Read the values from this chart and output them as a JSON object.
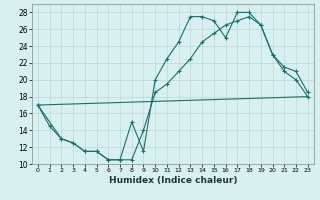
{
  "xlabel": "Humidex (Indice chaleur)",
  "bg_color": "#d8f0f0",
  "grid_color": "#b8d8d8",
  "line_color": "#1a6e6e",
  "xlim": [
    -0.5,
    23.5
  ],
  "ylim": [
    10,
    29
  ],
  "xticks": [
    0,
    1,
    2,
    3,
    4,
    5,
    6,
    7,
    8,
    9,
    10,
    11,
    12,
    13,
    14,
    15,
    16,
    17,
    18,
    19,
    20,
    21,
    22,
    23
  ],
  "yticks": [
    10,
    12,
    14,
    16,
    18,
    20,
    22,
    24,
    26,
    28
  ],
  "line1_x": [
    0,
    1,
    2,
    3,
    4,
    5,
    6,
    7,
    8,
    9,
    10,
    11,
    12,
    13,
    14,
    15,
    16,
    17,
    18,
    19,
    20,
    21,
    22,
    23
  ],
  "line1_y": [
    17,
    14.5,
    13,
    12.5,
    11.5,
    11.5,
    10.5,
    10.5,
    15,
    11.5,
    20.0,
    22.5,
    24.5,
    27.5,
    27.5,
    27.0,
    25.0,
    28.0,
    28.0,
    26.5,
    23.0,
    21.0,
    20.0,
    18.0
  ],
  "line2_x": [
    0,
    2,
    3,
    4,
    5,
    6,
    7,
    8,
    9,
    10,
    11,
    12,
    13,
    14,
    15,
    16,
    17,
    18,
    19,
    20,
    21,
    22,
    23
  ],
  "line2_y": [
    17,
    13,
    12.5,
    11.5,
    11.5,
    10.5,
    10.5,
    10.5,
    14.0,
    18.5,
    19.5,
    21.0,
    22.5,
    24.5,
    25.5,
    26.5,
    27.0,
    27.5,
    26.5,
    23.0,
    21.5,
    21.0,
    18.5
  ],
  "line3_x": [
    0,
    23
  ],
  "line3_y": [
    17,
    18
  ]
}
